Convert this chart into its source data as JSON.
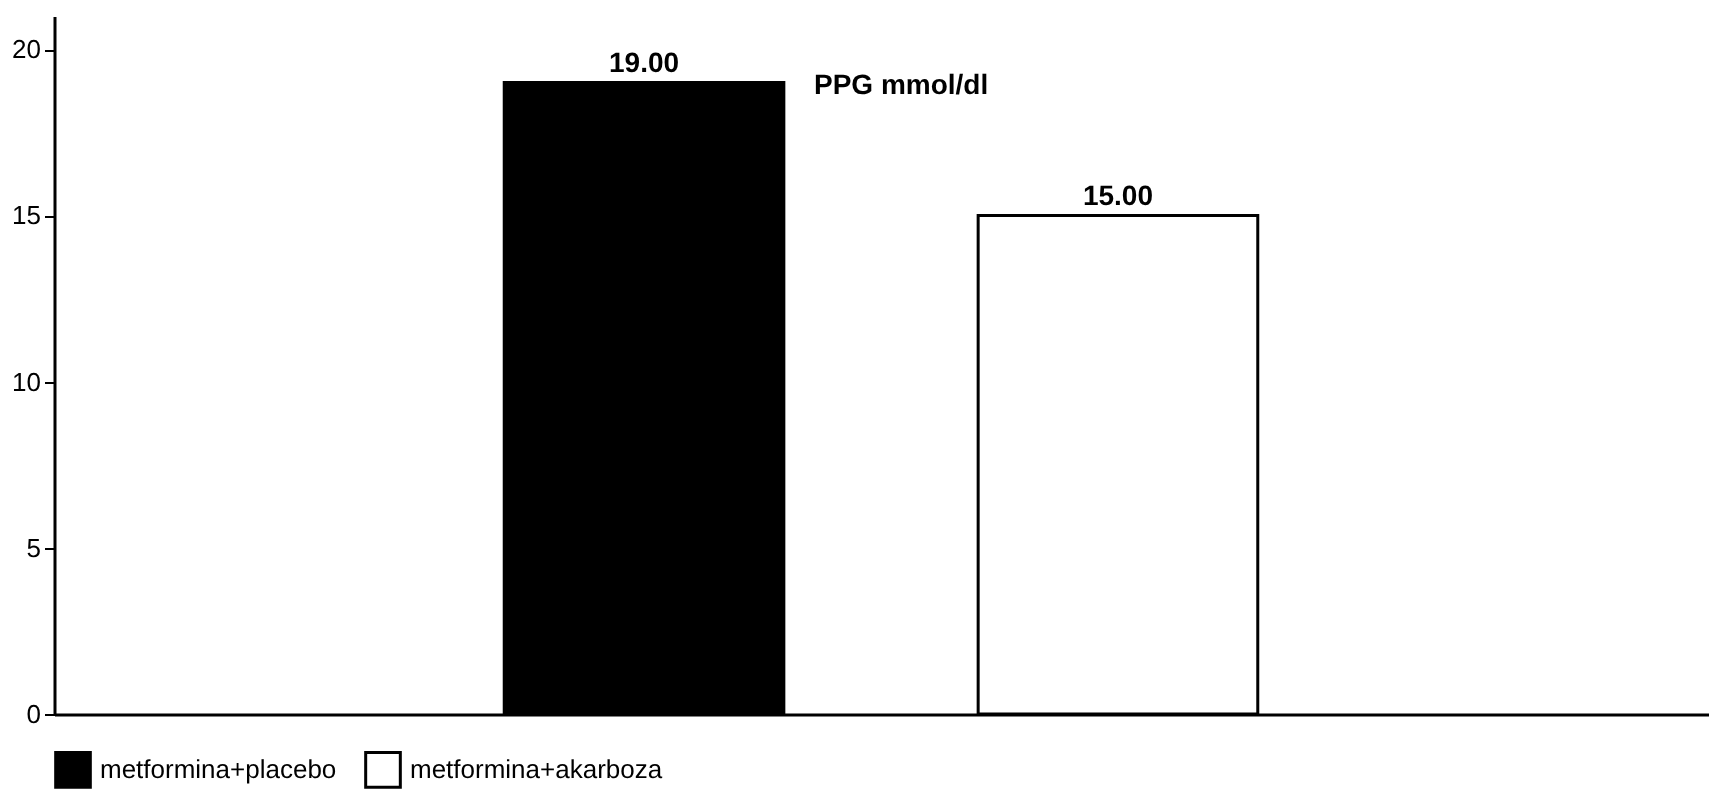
{
  "chart_data": {
    "type": "bar",
    "title": "PPG mmol/dl",
    "categories": [
      null
    ],
    "series": [
      {
        "name": "metformina+placebo",
        "color": "#000000",
        "values": [
          19.0
        ],
        "value_labels": [
          "19.00"
        ]
      },
      {
        "name": "metformina+akarboza",
        "color": "#ffffff",
        "values": [
          15.0
        ],
        "value_labels": [
          "15.00"
        ]
      }
    ],
    "ylim": [
      0,
      21
    ],
    "yticks": [
      0,
      5,
      10,
      15,
      20
    ],
    "legend": "bottom",
    "grid": false
  }
}
